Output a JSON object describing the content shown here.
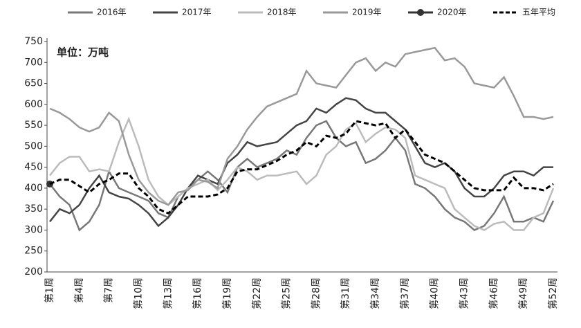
{
  "chart_data": {
    "type": "line",
    "annotation": "单位：万吨",
    "categories": [
      "第1周",
      null,
      null,
      "第4周",
      null,
      null,
      "第7周",
      null,
      null,
      "第10周",
      null,
      null,
      "第13周",
      null,
      null,
      "第16周",
      null,
      null,
      "第19周",
      null,
      null,
      "第22周",
      null,
      null,
      "第25周",
      null,
      null,
      "第28周",
      null,
      null,
      "第31周",
      null,
      null,
      "第34周",
      null,
      null,
      "第37周",
      null,
      null,
      "第40周",
      null,
      null,
      "第43周",
      null,
      null,
      "第46周",
      null,
      null,
      "第49周",
      null,
      null,
      "第52周"
    ],
    "series": [
      {
        "name": "2016年",
        "color": "#777777",
        "dash": false,
        "marker": false,
        "values": [
          410,
          380,
          360,
          300,
          320,
          360,
          440,
          400,
          390,
          380,
          370,
          340,
          330,
          380,
          400,
          420,
          440,
          420,
          390,
          450,
          470,
          450,
          460,
          470,
          490,
          480,
          520,
          550,
          560,
          520,
          500,
          510,
          460,
          470,
          490,
          520,
          490,
          410,
          400,
          380,
          350,
          330,
          320,
          300,
          310,
          340,
          380,
          320,
          320,
          330,
          320,
          370
        ]
      },
      {
        "name": "2017年",
        "color": "#444444",
        "dash": false,
        "marker": false,
        "values": [
          320,
          350,
          340,
          360,
          400,
          430,
          390,
          380,
          375,
          360,
          340,
          310,
          330,
          360,
          400,
          430,
          420,
          410,
          460,
          480,
          510,
          500,
          505,
          510,
          530,
          550,
          560,
          590,
          580,
          600,
          615,
          610,
          590,
          580,
          580,
          560,
          540,
          500,
          460,
          450,
          460,
          440,
          400,
          380,
          380,
          400,
          430,
          440,
          440,
          430,
          450,
          450
        ]
      },
      {
        "name": "2018年",
        "color": "#bbbbbb",
        "dash": false,
        "marker": false,
        "values": [
          430,
          460,
          475,
          475,
          440,
          445,
          440,
          510,
          565,
          500,
          420,
          380,
          360,
          380,
          400,
          410,
          420,
          395,
          420,
          450,
          440,
          420,
          430,
          430,
          435,
          440,
          410,
          430,
          480,
          500,
          540,
          555,
          510,
          530,
          545,
          540,
          520,
          430,
          420,
          410,
          400,
          350,
          330,
          310,
          300,
          315,
          320,
          300,
          300,
          330,
          340,
          400
        ]
      },
      {
        "name": "2019年",
        "color": "#999999",
        "dash": false,
        "marker": false,
        "values": [
          590,
          580,
          565,
          545,
          535,
          545,
          580,
          560,
          480,
          420,
          390,
          370,
          360,
          390,
          395,
          420,
          415,
          400,
          470,
          500,
          540,
          570,
          595,
          605,
          615,
          625,
          680,
          650,
          645,
          640,
          670,
          700,
          710,
          680,
          700,
          690,
          720,
          725,
          730,
          735,
          705,
          710,
          690,
          650,
          645,
          640,
          665,
          620,
          570,
          570,
          565,
          570
        ]
      },
      {
        "name": "2020年",
        "color": "#333333",
        "dash": false,
        "marker": true,
        "values": [
          410,
          null,
          null,
          null,
          null,
          null,
          null,
          null,
          null,
          null,
          null,
          null,
          null,
          null,
          null,
          null,
          null,
          null,
          null,
          null,
          null,
          null,
          null,
          null,
          null,
          null,
          null,
          null,
          null,
          null,
          null,
          null,
          null,
          null,
          null,
          null,
          null,
          null,
          null,
          null,
          null,
          null,
          null,
          null,
          null,
          null,
          null,
          null,
          null,
          null,
          null,
          null
        ]
      },
      {
        "name": "五年平均",
        "color": "#000000",
        "dash": true,
        "marker": false,
        "values": [
          410,
          420,
          420,
          405,
          390,
          410,
          420,
          435,
          435,
          400,
          380,
          350,
          340,
          360,
          380,
          380,
          380,
          385,
          400,
          440,
          445,
          445,
          455,
          465,
          480,
          490,
          510,
          500,
          525,
          520,
          530,
          560,
          555,
          550,
          555,
          520,
          540,
          510,
          480,
          470,
          460,
          440,
          420,
          400,
          395,
          395,
          395,
          425,
          400,
          400,
          395,
          410
        ]
      }
    ],
    "ylim": [
      200,
      750
    ],
    "yticks": [
      200,
      250,
      300,
      350,
      400,
      450,
      500,
      550,
      600,
      650,
      700,
      750
    ],
    "grid": false,
    "legend": "top"
  }
}
